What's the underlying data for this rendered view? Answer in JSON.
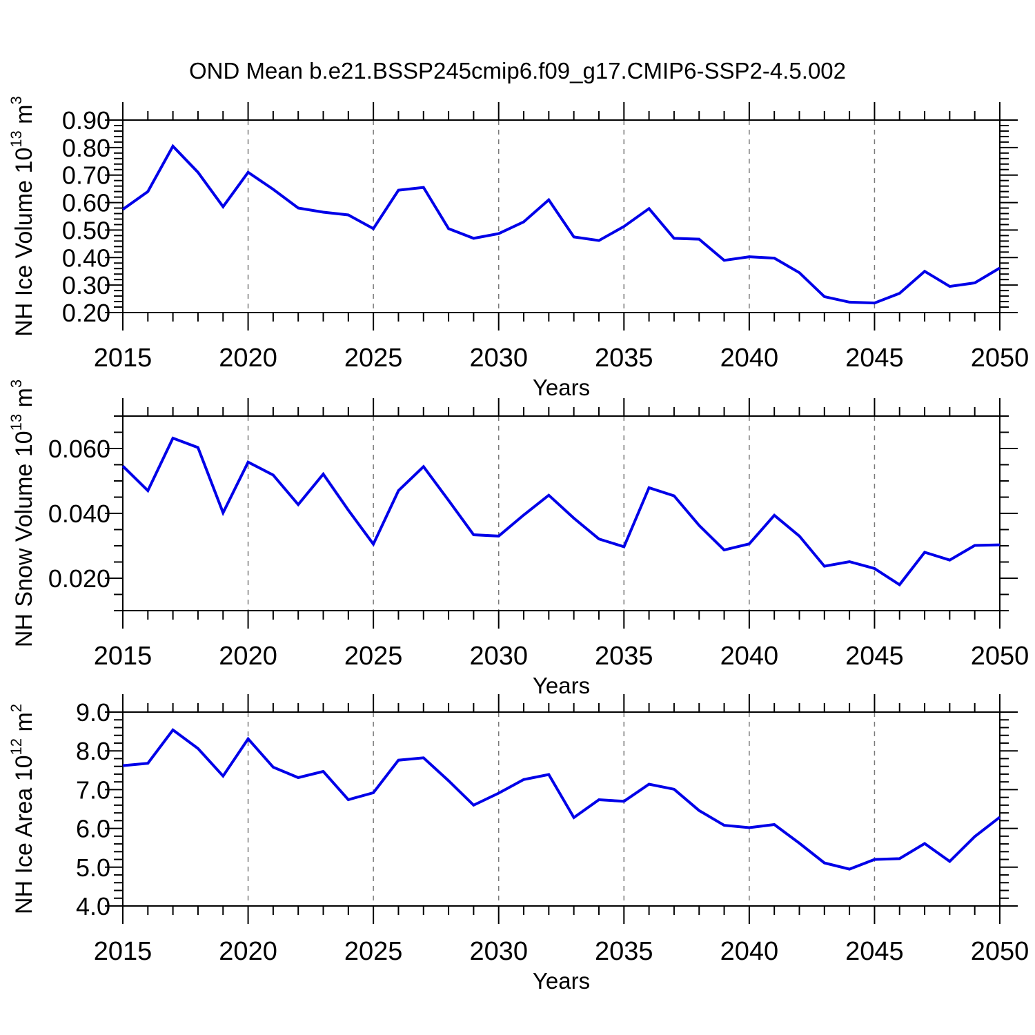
{
  "title": "OND Mean b.e21.BSSP245cmip6.f09_g17.CMIP6-SSP2-4.5.002",
  "colors": {
    "line": "#0000e8",
    "axis": "#000000",
    "gridline": "#7a7a7a",
    "text": "#000000",
    "background": "#ffffff"
  },
  "x_axis": {
    "label": "Years",
    "range": [
      2015,
      2050
    ],
    "major_ticks": [
      2015,
      2020,
      2025,
      2030,
      2035,
      2040,
      2045,
      2050
    ],
    "minor_step_years": 1,
    "gridline_years": [
      2020,
      2025,
      2030,
      2035,
      2040,
      2045
    ]
  },
  "chart_data": [
    {
      "id": "nh-ice-volume",
      "type": "line",
      "title": "",
      "xlabel": "Years",
      "ylabel": "NH Ice Volume 10^13 m^3",
      "ylim": [
        0.2,
        0.9
      ],
      "ytick_step": 0.1,
      "yminor_step": 0.02,
      "ytick_decimals": 2,
      "ytick_labels": [
        "0.20",
        "0.30",
        "0.40",
        "0.50",
        "0.60",
        "0.70",
        "0.80",
        "0.90"
      ],
      "grid": "vertical-dashed",
      "legend": "none",
      "x": [
        2015,
        2016,
        2017,
        2018,
        2019,
        2020,
        2021,
        2022,
        2023,
        2024,
        2025,
        2026,
        2027,
        2028,
        2029,
        2030,
        2031,
        2032,
        2033,
        2034,
        2035,
        2036,
        2037,
        2038,
        2039,
        2040,
        2041,
        2042,
        2043,
        2044,
        2045,
        2046,
        2047,
        2048,
        2049,
        2050
      ],
      "values": [
        0.575,
        0.64,
        0.805,
        0.71,
        0.585,
        0.71,
        0.648,
        0.58,
        0.565,
        0.555,
        0.505,
        0.645,
        0.655,
        0.505,
        0.47,
        0.487,
        0.53,
        0.61,
        0.475,
        0.462,
        0.513,
        0.578,
        0.47,
        0.467,
        0.39,
        0.403,
        0.398,
        0.345,
        0.258,
        0.238,
        0.235,
        0.27,
        0.35,
        0.295,
        0.308,
        0.362
      ]
    },
    {
      "id": "nh-snow-volume",
      "type": "line",
      "title": "",
      "xlabel": "Years",
      "ylabel": "NH Snow Volume 10^13 m^3",
      "ylim": [
        0.01,
        0.07
      ],
      "ytick_step": 0.02,
      "yminor_step": 0.005,
      "ytick_decimals": 3,
      "ytick_labels": [
        "0.020",
        "0.040",
        "0.060"
      ],
      "grid": "vertical-dashed",
      "legend": "none",
      "x": [
        2015,
        2016,
        2017,
        2018,
        2019,
        2020,
        2021,
        2022,
        2023,
        2024,
        2025,
        2026,
        2027,
        2028,
        2029,
        2030,
        2031,
        2032,
        2033,
        2034,
        2035,
        2036,
        2037,
        2038,
        2039,
        2040,
        2041,
        2042,
        2043,
        2044,
        2045,
        2046,
        2047,
        2048,
        2049,
        2050
      ],
      "values": [
        0.0546,
        0.047,
        0.0632,
        0.0603,
        0.0402,
        0.0558,
        0.0518,
        0.0427,
        0.0521,
        0.041,
        0.0305,
        0.047,
        0.0544,
        0.044,
        0.0334,
        0.033,
        0.0395,
        0.0456,
        0.0385,
        0.0321,
        0.0297,
        0.0479,
        0.0454,
        0.0363,
        0.0287,
        0.0306,
        0.0394,
        0.033,
        0.0237,
        0.0251,
        0.023,
        0.018,
        0.028,
        0.0256,
        0.0301,
        0.0303
      ]
    },
    {
      "id": "nh-ice-area",
      "type": "line",
      "title": "",
      "xlabel": "Years",
      "ylabel": "NH Ice Area 10^12 m^2",
      "ylim": [
        4.0,
        9.0
      ],
      "ytick_step": 1.0,
      "yminor_step": 0.2,
      "ytick_decimals": 1,
      "ytick_labels": [
        "4.0",
        "5.0",
        "6.0",
        "7.0",
        "8.0",
        "9.0"
      ],
      "grid": "vertical-dashed",
      "legend": "none",
      "x": [
        2015,
        2016,
        2017,
        2018,
        2019,
        2020,
        2021,
        2022,
        2023,
        2024,
        2025,
        2026,
        2027,
        2028,
        2029,
        2030,
        2031,
        2032,
        2033,
        2034,
        2035,
        2036,
        2037,
        2038,
        2039,
        2040,
        2041,
        2042,
        2043,
        2044,
        2045,
        2046,
        2047,
        2048,
        2049,
        2050
      ],
      "values": [
        7.62,
        7.68,
        8.54,
        8.06,
        7.35,
        8.31,
        7.58,
        7.31,
        7.47,
        6.74,
        6.92,
        7.76,
        7.82,
        7.23,
        6.6,
        6.91,
        7.26,
        7.39,
        6.28,
        6.74,
        6.7,
        7.14,
        7.01,
        6.46,
        6.08,
        6.02,
        6.1,
        5.62,
        5.11,
        4.95,
        5.2,
        5.22,
        5.61,
        5.15,
        5.79,
        6.29
      ]
    }
  ]
}
